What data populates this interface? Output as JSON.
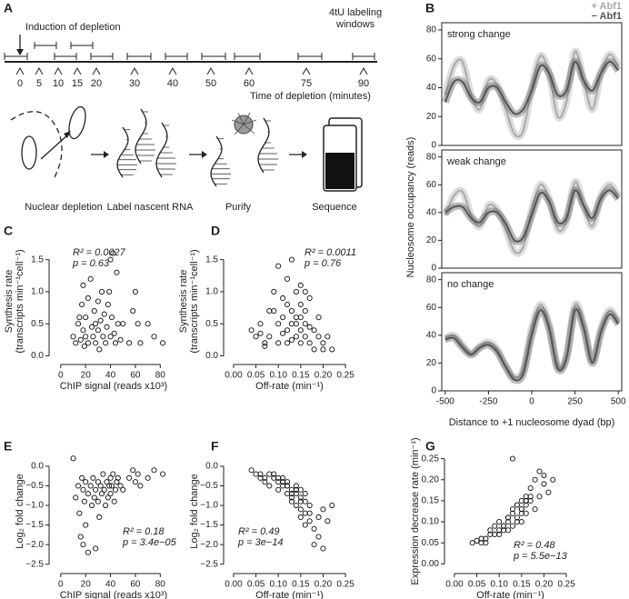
{
  "panel_a": {
    "letter": "A",
    "induction": "Induction of depletion",
    "labeling": [
      "4tU labeling",
      "windows"
    ],
    "time_label": "Time of depletion (minutes)",
    "times": [
      0,
      5,
      10,
      15,
      20,
      30,
      40,
      50,
      60,
      75,
      90
    ],
    "steps": [
      "Nuclear depletion",
      "Label nascent RNA",
      "Purify",
      "Sequence"
    ]
  },
  "chart_data": [
    {
      "type": "line",
      "panel": "B",
      "ylabel": "Nucleosome occupancy (reads)",
      "xlabel": "Distance to +1 nucleosome dyad (bp)",
      "x": [
        -500,
        -450,
        -400,
        -350,
        -300,
        -250,
        -200,
        -150,
        -100,
        -50,
        0,
        50,
        100,
        150,
        200,
        250,
        300,
        350,
        400,
        450,
        500
      ],
      "xlim": [
        -520,
        520
      ],
      "xticks": [
        -500,
        -250,
        0,
        250,
        500
      ],
      "ylim": [
        0,
        85
      ],
      "yticks": [
        0,
        20,
        40,
        60,
        80
      ],
      "series": [
        {
          "name": "+ Abf1",
          "color": "#aaaaaa"
        },
        {
          "name": "− Abf1",
          "color": "#555555"
        }
      ],
      "panels": [
        {
          "annotation": "strong change",
          "values": [
            [
              35,
              55,
              58,
              35,
              25,
              45,
              42,
              25,
              8,
              10,
              40,
              62,
              50,
              20,
              30,
              65,
              45,
              25,
              50,
              63,
              55
            ],
            [
              30,
              44,
              44,
              33,
              30,
              40,
              40,
              30,
              22,
              25,
              38,
              55,
              50,
              35,
              38,
              58,
              45,
              38,
              50,
              58,
              52
            ]
          ]
        },
        {
          "annotation": "weak change",
          "values": [
            [
              38,
              52,
              55,
              38,
              30,
              45,
              42,
              28,
              12,
              15,
              42,
              60,
              50,
              28,
              33,
              62,
              45,
              30,
              52,
              60,
              52
            ],
            [
              40,
              44,
              44,
              36,
              33,
              40,
              40,
              32,
              20,
              22,
              38,
              54,
              48,
              33,
              36,
              56,
              45,
              36,
              50,
              56,
              50
            ]
          ]
        },
        {
          "annotation": "no change",
          "values": [
            [
              38,
              40,
              33,
              27,
              32,
              35,
              30,
              18,
              10,
              15,
              45,
              62,
              48,
              18,
              25,
              62,
              48,
              22,
              45,
              58,
              50
            ],
            [
              37,
              38,
              31,
              26,
              31,
              33,
              28,
              17,
              8,
              12,
              40,
              58,
              45,
              16,
              23,
              58,
              45,
              20,
              42,
              55,
              48
            ]
          ]
        }
      ]
    },
    {
      "type": "scatter",
      "panel": "C",
      "ylabel": [
        "Synthesis rate",
        "(transcripts min⁻¹cell⁻¹)"
      ],
      "xlabel": "ChIP signal (reads x10³)",
      "annotations": [
        "R² = 0.0027",
        "p = 0.63"
      ],
      "xlim": [
        -5,
        90
      ],
      "xticks": [
        0,
        20,
        40,
        60,
        80
      ],
      "ylim": [
        -0.05,
        1.75
      ],
      "yticks": [
        {
          "value": 0,
          "label": "0.0"
        },
        0.5,
        {
          "value": 1,
          "label": "1.0"
        },
        1.5
      ],
      "x": [
        10,
        12,
        14,
        15,
        16,
        17,
        18,
        18,
        19,
        20,
        20,
        22,
        22,
        24,
        25,
        26,
        27,
        28,
        28,
        30,
        30,
        31,
        32,
        33,
        34,
        35,
        36,
        37,
        38,
        39,
        40,
        40,
        41,
        42,
        43,
        44,
        45,
        46,
        48,
        50,
        55,
        58,
        60,
        62,
        64,
        70,
        75,
        82
      ],
      "values": [
        0.3,
        0.2,
        0.5,
        0.6,
        0.25,
        0.8,
        0.4,
        1.1,
        0.15,
        0.3,
        0.6,
        0.9,
        0.2,
        1.2,
        0.45,
        0.3,
        0.7,
        0.5,
        0.2,
        0.85,
        0.4,
        0.1,
        0.55,
        1.0,
        0.3,
        0.65,
        0.2,
        0.45,
        0.8,
        1.0,
        1.5,
        0.3,
        0.6,
        1.6,
        0.35,
        0.2,
        1.3,
        0.5,
        0.25,
        0.5,
        0.2,
        0.7,
        1.0,
        0.5,
        0.2,
        0.5,
        0.3,
        0.2
      ]
    },
    {
      "type": "scatter",
      "panel": "D",
      "ylabel": [
        "Synthesis rate",
        "(transcripts min⁻¹cell⁻¹)"
      ],
      "xlabel": "Off-rate (min⁻¹)",
      "annotations": [
        "R² = 0.0011",
        "p = 0.76"
      ],
      "xlim": [
        -0.01,
        0.26
      ],
      "xticks": [
        {
          "value": 0,
          "label": "0.00"
        },
        0.05,
        {
          "value": 0.1,
          "label": "0.10"
        },
        0.15,
        {
          "value": 0.2,
          "label": "0.20"
        },
        0.25
      ],
      "ylim": [
        -0.05,
        1.75
      ],
      "yticks": [
        {
          "value": 0,
          "label": "0.0"
        },
        0.5,
        {
          "value": 1,
          "label": "1.0"
        },
        1.5
      ],
      "x": [
        0.04,
        0.05,
        0.06,
        0.07,
        0.08,
        0.08,
        0.09,
        0.1,
        0.1,
        0.11,
        0.11,
        0.12,
        0.12,
        0.12,
        0.13,
        0.13,
        0.13,
        0.14,
        0.14,
        0.14,
        0.15,
        0.15,
        0.15,
        0.15,
        0.16,
        0.16,
        0.16,
        0.17,
        0.17,
        0.18,
        0.18,
        0.19,
        0.19,
        0.2,
        0.2,
        0.21,
        0.22,
        0.1,
        0.12,
        0.14,
        0.09,
        0.11,
        0.13,
        0.16,
        0.15,
        0.07,
        0.06,
        0.17
      ],
      "values": [
        0.4,
        0.3,
        0.5,
        0.2,
        0.7,
        0.3,
        1.0,
        0.5,
        0.2,
        0.6,
        0.9,
        1.2,
        0.4,
        0.2,
        0.7,
        1.5,
        0.5,
        0.3,
        1.0,
        0.6,
        0.4,
        0.8,
        0.2,
        1.1,
        0.5,
        0.3,
        0.7,
        0.2,
        0.9,
        0.4,
        0.1,
        0.6,
        0.3,
        0.1,
        0.2,
        0.3,
        0.1,
        1.4,
        0.8,
        0.5,
        0.7,
        0.35,
        0.25,
        1.0,
        0.6,
        0.15,
        0.35,
        0.45
      ]
    },
    {
      "type": "scatter",
      "panel": "E",
      "ylabel": [
        "Log₂ fold change"
      ],
      "xlabel": "ChIP signal (reads x10³)",
      "annotations": [
        "R² = 0.18",
        "p = 3.4e−05"
      ],
      "xlim": [
        -5,
        90
      ],
      "xticks": [
        0,
        20,
        40,
        60,
        80
      ],
      "ylim": [
        -2.6,
        0.3
      ],
      "yticks": [
        {
          "value": -2.5,
          "label": "−2.5"
        },
        {
          "value": -2,
          "label": "−2.0"
        },
        {
          "value": -1.5,
          "label": "−1.5"
        },
        {
          "value": -1,
          "label": "−1.0"
        },
        {
          "value": -0.5,
          "label": "−0.5"
        },
        {
          "value": 0,
          "label": "0.0"
        }
      ],
      "x": [
        10,
        12,
        14,
        15,
        16,
        17,
        18,
        18,
        19,
        20,
        20,
        22,
        22,
        24,
        25,
        26,
        27,
        28,
        28,
        30,
        30,
        31,
        32,
        33,
        34,
        35,
        36,
        37,
        38,
        39,
        40,
        40,
        41,
        42,
        43,
        44,
        45,
        46,
        48,
        50,
        55,
        58,
        60,
        62,
        64,
        70,
        75,
        82
      ],
      "values": [
        0.2,
        -0.8,
        -0.5,
        -1.2,
        -1.8,
        -0.3,
        -0.6,
        -2.0,
        -0.9,
        -0.4,
        -1.5,
        -0.7,
        -2.2,
        -0.5,
        -1.0,
        -0.3,
        -0.8,
        -0.6,
        -2.1,
        -0.4,
        -0.9,
        -1.3,
        -0.5,
        -0.7,
        -0.2,
        -0.6,
        -1.0,
        -0.4,
        -0.8,
        -0.5,
        -0.3,
        -0.7,
        -0.5,
        -0.2,
        -0.9,
        -0.6,
        -0.4,
        -0.3,
        -0.5,
        -0.6,
        -0.3,
        -0.1,
        -0.4,
        -0.2,
        -0.5,
        -0.3,
        -0.1,
        -0.2
      ]
    },
    {
      "type": "scatter",
      "panel": "F",
      "ylabel": [
        "Log₂ fold change"
      ],
      "xlabel": "Off-rate (min⁻¹)",
      "annotations": [
        "R² = 0.49",
        "p = 3e−14"
      ],
      "xlim": [
        -0.01,
        0.26
      ],
      "xticks": [
        {
          "value": 0,
          "label": "0.00"
        },
        0.05,
        {
          "value": 0.1,
          "label": "0.10"
        },
        0.15,
        {
          "value": 0.2,
          "label": "0.20"
        },
        0.25
      ],
      "ylim": [
        -2.6,
        0.3
      ],
      "yticks": [
        {
          "value": -2.5,
          "label": "−2.5"
        },
        {
          "value": -2,
          "label": "−2.0"
        },
        {
          "value": -1.5,
          "label": "−1.5"
        },
        {
          "value": -1,
          "label": "−1.0"
        },
        {
          "value": -0.5,
          "label": "−0.5"
        },
        {
          "value": 0,
          "label": "0.0"
        }
      ],
      "x": [
        0.04,
        0.05,
        0.06,
        0.07,
        0.08,
        0.08,
        0.09,
        0.1,
        0.1,
        0.11,
        0.11,
        0.12,
        0.12,
        0.12,
        0.13,
        0.13,
        0.13,
        0.14,
        0.14,
        0.14,
        0.15,
        0.15,
        0.15,
        0.15,
        0.16,
        0.16,
        0.16,
        0.17,
        0.17,
        0.18,
        0.18,
        0.19,
        0.19,
        0.2,
        0.2,
        0.21,
        0.22,
        0.1,
        0.12,
        0.14,
        0.09,
        0.11,
        0.13,
        0.16,
        0.15,
        0.07,
        0.06,
        0.17
      ],
      "values": [
        -0.1,
        -0.2,
        -0.3,
        -0.4,
        -0.2,
        -0.5,
        -0.3,
        -0.4,
        -0.6,
        -0.5,
        -0.3,
        -0.7,
        -0.5,
        -0.4,
        -0.8,
        -0.6,
        -0.9,
        -0.7,
        -1.0,
        -0.5,
        -0.8,
        -1.1,
        -1.3,
        -0.6,
        -0.9,
        -1.5,
        -0.7,
        -1.2,
        -1.0,
        -1.6,
        -2.0,
        -1.3,
        -1.8,
        -2.1,
        -1.1,
        -1.4,
        -1.0,
        -0.3,
        -0.5,
        -0.6,
        -0.2,
        -0.4,
        -0.7,
        -1.2,
        -0.9,
        -0.3,
        -0.2,
        -1.4
      ]
    },
    {
      "type": "scatter",
      "panel": "G",
      "ylabel": [
        "Expression decrease rate (min⁻¹)"
      ],
      "xlabel": "Off-rate (min⁻¹)",
      "annotations": [
        "R² = 0.48",
        "p = 5.5e−13"
      ],
      "xlim": [
        -0.01,
        0.26
      ],
      "xticks": [
        {
          "value": 0,
          "label": "0.00"
        },
        0.05,
        {
          "value": 0.1,
          "label": "0.10"
        },
        0.15,
        {
          "value": 0.2,
          "label": "0.20"
        },
        0.25
      ],
      "ylim": [
        -0.01,
        0.26
      ],
      "yticks": [
        {
          "value": 0,
          "label": "0.00"
        },
        0.05,
        {
          "value": 0.1,
          "label": "0.10"
        },
        0.15,
        {
          "value": 0.2,
          "label": "0.20"
        },
        0.25
      ],
      "x": [
        0.04,
        0.05,
        0.06,
        0.07,
        0.08,
        0.08,
        0.09,
        0.1,
        0.1,
        0.11,
        0.11,
        0.12,
        0.12,
        0.12,
        0.13,
        0.13,
        0.13,
        0.14,
        0.14,
        0.14,
        0.15,
        0.15,
        0.15,
        0.15,
        0.16,
        0.16,
        0.16,
        0.17,
        0.17,
        0.18,
        0.18,
        0.19,
        0.19,
        0.2,
        0.2,
        0.21,
        0.22,
        0.1,
        0.12,
        0.14,
        0.09,
        0.11,
        0.13,
        0.16,
        0.15,
        0.07,
        0.06,
        0.17
      ],
      "values": [
        0.05,
        0.055,
        0.06,
        0.05,
        0.07,
        0.08,
        0.09,
        0.07,
        0.1,
        0.08,
        0.09,
        0.1,
        0.11,
        0.08,
        0.12,
        0.09,
        0.13,
        0.1,
        0.14,
        0.11,
        0.12,
        0.15,
        0.1,
        0.13,
        0.16,
        0.12,
        0.14,
        0.15,
        0.18,
        0.13,
        0.2,
        0.16,
        0.22,
        0.19,
        0.21,
        0.17,
        0.2,
        0.08,
        0.11,
        0.14,
        0.07,
        0.09,
        0.25,
        0.15,
        0.13,
        0.06,
        0.05,
        0.16
      ]
    }
  ]
}
